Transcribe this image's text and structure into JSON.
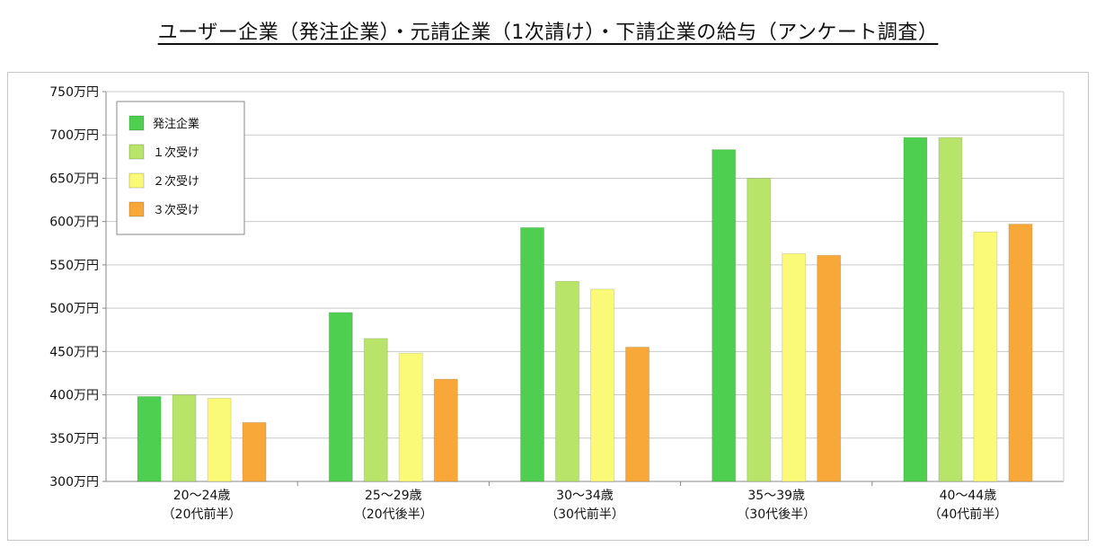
{
  "title": "ユーザー企業（発注企業）・元請企業（1次請け）・下請企業の給与（アンケート調査）",
  "chart_data": {
    "type": "bar",
    "categories": [
      [
        "20～24歳",
        "（20代前半）"
      ],
      [
        "25～29歳",
        "（20代後半）"
      ],
      [
        "30～34歳",
        "（30代前半）"
      ],
      [
        "35～39歳",
        "（30代後半）"
      ],
      [
        "40～44歳",
        "（40代前半）"
      ]
    ],
    "series": [
      {
        "name": "発注企業",
        "color": "#4fcf4f",
        "values": [
          398,
          495,
          593,
          683,
          697
        ]
      },
      {
        "name": "１次受け",
        "color": "#b8e46a",
        "values": [
          400,
          465,
          531,
          650,
          697
        ]
      },
      {
        "name": "２次受け",
        "color": "#fafa78",
        "values": [
          396,
          448,
          522,
          563,
          588
        ]
      },
      {
        "name": "３次受け",
        "color": "#f8a838",
        "values": [
          368,
          418,
          455,
          561,
          597
        ]
      }
    ],
    "y_ticks": [
      "300万円",
      "350万円",
      "400万円",
      "450万円",
      "500万円",
      "550万円",
      "600万円",
      "650万円",
      "700万円",
      "750万円"
    ],
    "ylim": [
      300,
      750
    ],
    "y_step": 50,
    "grid": true,
    "legend": "top-left"
  }
}
